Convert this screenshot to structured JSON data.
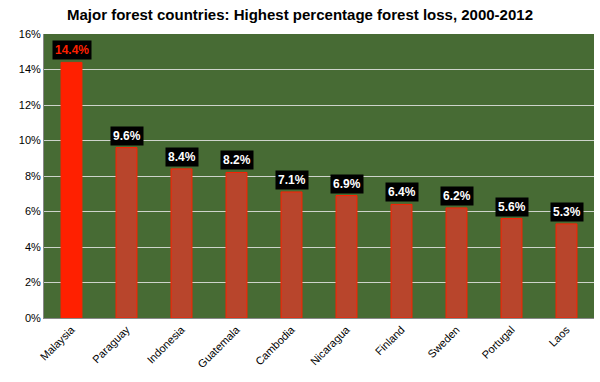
{
  "chart_data": {
    "type": "bar",
    "title": "Major forest countries: Highest percentage forest loss, 2000-2012",
    "categories": [
      "Malaysia",
      "Paraguay",
      "Indonesia",
      "Guatemala",
      "Cambodia",
      "Nicaragua",
      "Finland",
      "Sweden",
      "Portugal",
      "Laos"
    ],
    "values": [
      14.4,
      9.6,
      8.4,
      8.2,
      7.1,
      6.9,
      6.4,
      6.2,
      5.6,
      5.3
    ],
    "value_labels": [
      "14.4%",
      "9.6%",
      "8.4%",
      "8.2%",
      "7.1%",
      "6.9%",
      "6.4%",
      "6.2%",
      "5.6%",
      "5.3%"
    ],
    "colors": [
      "#ff2000",
      "#b8452c",
      "#b8452c",
      "#b8452c",
      "#b8452c",
      "#b8452c",
      "#b8452c",
      "#b8452c",
      "#b8452c",
      "#b8452c"
    ],
    "ylim": [
      0,
      16
    ],
    "yticks": [
      {
        "value": 0,
        "label": "0%"
      },
      {
        "value": 2,
        "label": "2%"
      },
      {
        "value": 4,
        "label": "4%"
      },
      {
        "value": 6,
        "label": "6%"
      },
      {
        "value": 8,
        "label": "8%"
      },
      {
        "value": 10,
        "label": "10%"
      },
      {
        "value": 12,
        "label": "12%"
      },
      {
        "value": 14,
        "label": "14%"
      },
      {
        "value": 16,
        "label": "16%"
      }
    ],
    "grid": true,
    "data_labels": true
  }
}
